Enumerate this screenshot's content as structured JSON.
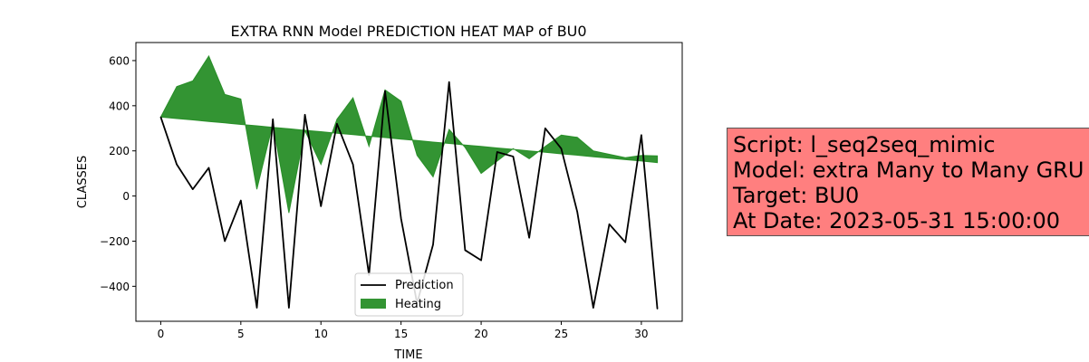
{
  "chart_data": {
    "type": "line",
    "title": "EXTRA RNN Model PREDICTION HEAT MAP of BU0",
    "xlabel": "TIME",
    "ylabel": "CLASSES",
    "xlim": [
      -1.55,
      32.55
    ],
    "ylim": [
      -555,
      680
    ],
    "x_ticks": [
      0,
      5,
      10,
      15,
      20,
      25,
      30
    ],
    "y_ticks": [
      -400,
      -200,
      0,
      200,
      400,
      600
    ],
    "grid": false,
    "legend_position": "lower center",
    "x": [
      0,
      1,
      2,
      3,
      4,
      5,
      6,
      7,
      8,
      9,
      10,
      11,
      12,
      13,
      14,
      15,
      16,
      17,
      18,
      19,
      20,
      21,
      22,
      23,
      24,
      25,
      26,
      27,
      28,
      29,
      30,
      31
    ],
    "series": [
      {
        "name": "Prediction",
        "kind": "line",
        "color": "#000000",
        "values": [
          350,
          140,
          30,
          125,
          -200,
          -20,
          -495,
          340,
          -495,
          360,
          -45,
          320,
          140,
          -350,
          465,
          -100,
          -475,
          -215,
          505,
          -240,
          -285,
          195,
          175,
          -185,
          300,
          210,
          -70,
          -495,
          -125,
          -205,
          270,
          -500
        ]
      },
      {
        "name": "Heating",
        "kind": "fill_between",
        "color": "#228b22",
        "opacity": 0.92,
        "baseline": [
          350,
          343,
          337,
          330,
          324,
          317,
          311,
          304,
          298,
          291,
          285,
          278,
          272,
          265,
          259,
          252,
          246,
          239,
          233,
          226,
          220,
          213,
          207,
          200,
          194,
          187,
          181,
          174,
          168,
          161,
          155,
          148
        ],
        "upper": [
          350,
          485,
          510,
          620,
          450,
          430,
          30,
          320,
          -75,
          290,
          140,
          340,
          435,
          220,
          470,
          420,
          180,
          85,
          295,
          215,
          100,
          155,
          210,
          165,
          220,
          270,
          260,
          200,
          185,
          170,
          180,
          178
        ]
      }
    ]
  },
  "info_box": {
    "lines": [
      "Script: l_seq2seq_mimic",
      "Model: extra Many to Many GRU",
      "Target: BU0",
      "At Date: 2023-05-31 15:00:00"
    ],
    "background": "#ff7f7f"
  }
}
